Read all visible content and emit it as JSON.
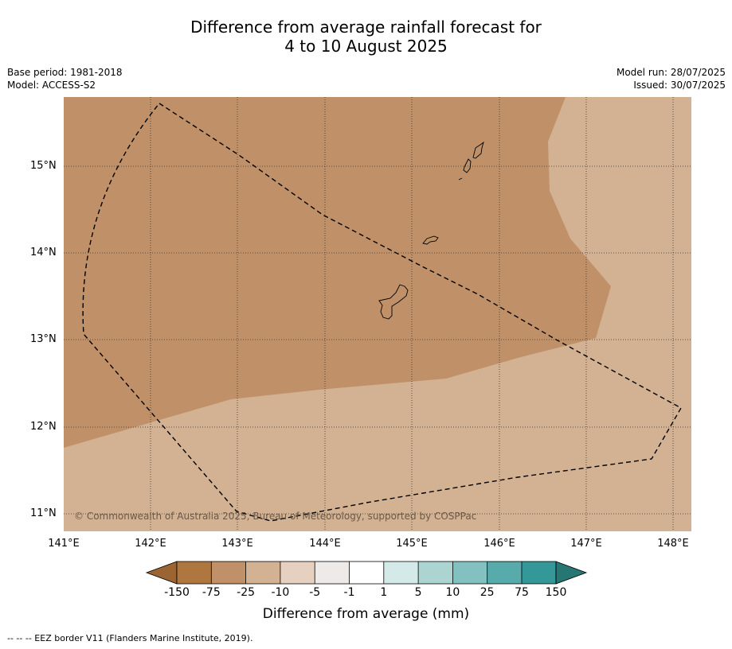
{
  "title_line1": "Difference from average rainfall forecast for",
  "title_line2": "4 to 10 August 2025",
  "base_period": "Base period: 1981-2018",
  "model": "Model: ACCESS-S2",
  "model_run": "Model run: 28/07/2025",
  "issued": "Issued: 30/07/2025",
  "copyright": "© Commonwealth of Australia 2025, Bureau of Meteorology, supported by COSPPac",
  "lat_labels": [
    "15°N",
    "14°N",
    "13°N",
    "12°N",
    "11°N"
  ],
  "lon_labels": [
    "141°E",
    "142°E",
    "143°E",
    "144°E",
    "145°E",
    "146°E",
    "147°E",
    "148°E"
  ],
  "colorbar": {
    "title": "Difference from average (mm)",
    "tick_labels": [
      "-150",
      "-75",
      "-25",
      "-10",
      "-5",
      "-1",
      "1",
      "5",
      "10",
      "25",
      "75",
      "150"
    ],
    "colors": [
      "#9b6433",
      "#ad773f",
      "#c09169",
      "#d2b292",
      "#e6d0bf",
      "#eeeae7",
      "#ffffff",
      "#d3eae9",
      "#acd5d2",
      "#82c1c0",
      "#58abab",
      "#349898",
      "#267674"
    ]
  },
  "legend_note": "--  --  -- EEZ border V11 (Flanders Marine Institute, 2019).",
  "map": {
    "background_color": "#d2b292",
    "drier_zone_color": "#c09169",
    "gridlines": "on"
  }
}
